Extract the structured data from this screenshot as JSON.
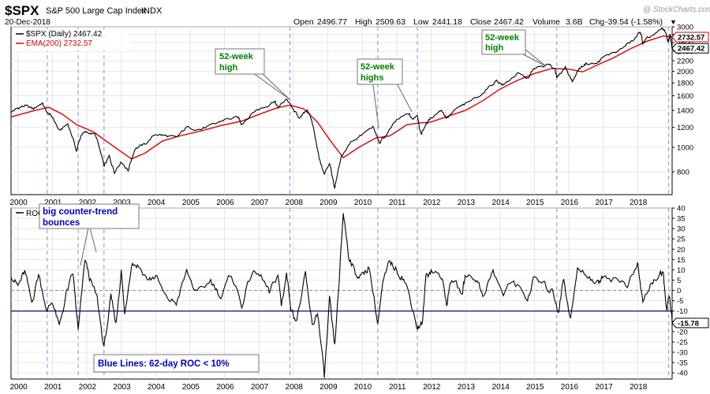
{
  "header": {
    "symbol": "$SPX",
    "name": "S&P 500 Large Cap Index",
    "exchange": "INDX",
    "date": "20-Dec-2018",
    "watermark": "@ StockCharts.com",
    "open_label": "Open",
    "open": "2496.77",
    "high_label": "High",
    "high": "2509.63",
    "low_label": "Low",
    "low": "2441.18",
    "close_label": "Close",
    "close": "2467.42",
    "volume_label": "Volume",
    "volume": "3.6B",
    "chg_label": "Chg",
    "chg": "-39.54 (-1.58%)",
    "chg_arrow": "▼",
    "chg_color": "#1a1ab0"
  },
  "legend": {
    "price_label": "$SPX (Daily) 2467.42",
    "ema_label": "EMA(200) 2732.57",
    "roc_label": "ROC"
  },
  "callouts": {
    "high_2007": [
      "52-week",
      "high"
    ],
    "highs_2011": [
      "52-week",
      "highs"
    ],
    "high_2015": [
      "52-week",
      "high"
    ],
    "bounces": [
      "big counter-trend",
      "bounces"
    ],
    "blue_lines": "Blue Lines: 62-day ROC < 10%"
  },
  "colors": {
    "price": "#000000",
    "ema": "#dd0000",
    "roc": "#000000",
    "threshold": "#0a0a6a",
    "signal": "#8b8bdd",
    "green_text": "#008000",
    "blue_text": "#0000cc",
    "grid": "#e0e0e0"
  },
  "chart_data": [
    {
      "type": "line",
      "title": "$SPX (Daily)",
      "scale": "log",
      "ylim": [
        650,
        3000
      ],
      "y_ticks": [
        800,
        1000,
        1200,
        1400,
        1600,
        1800,
        2000,
        2200,
        2400,
        2600,
        2800,
        3000
      ],
      "x_ticks": [
        "2000",
        "2001",
        "2002",
        "2003",
        "2004",
        "2005",
        "2006",
        "2007",
        "2008",
        "2009",
        "2010",
        "2011",
        "2012",
        "2013",
        "2014",
        "2015",
        "2016",
        "2017",
        "2018"
      ],
      "x_range": [
        1999.8,
        2019.0
      ],
      "signal_dates": [
        2000.85,
        2001.75,
        2002.5,
        2007.9,
        2010.45,
        2011.6,
        2015.65,
        2018.9
      ],
      "series": [
        {
          "name": "$SPX (Daily)",
          "last": 2467.42,
          "points": [
            [
              1999.8,
              1380
            ],
            [
              2000.0,
              1430
            ],
            [
              2000.2,
              1460
            ],
            [
              2000.45,
              1420
            ],
            [
              2000.7,
              1500
            ],
            [
              2000.85,
              1370
            ],
            [
              2001.0,
              1320
            ],
            [
              2001.2,
              1160
            ],
            [
              2001.45,
              1240
            ],
            [
              2001.7,
              970
            ],
            [
              2001.85,
              1130
            ],
            [
              2002.0,
              1150
            ],
            [
              2002.25,
              1120
            ],
            [
              2002.5,
              840
            ],
            [
              2002.65,
              920
            ],
            [
              2002.8,
              800
            ],
            [
              2003.0,
              880
            ],
            [
              2003.2,
              810
            ],
            [
              2003.4,
              990
            ],
            [
              2003.7,
              1030
            ],
            [
              2004.0,
              1130
            ],
            [
              2004.3,
              1110
            ],
            [
              2004.6,
              1090
            ],
            [
              2004.9,
              1200
            ],
            [
              2005.3,
              1180
            ],
            [
              2005.7,
              1230
            ],
            [
              2006.0,
              1290
            ],
            [
              2006.4,
              1310
            ],
            [
              2006.5,
              1240
            ],
            [
              2006.9,
              1400
            ],
            [
              2007.2,
              1450
            ],
            [
              2007.45,
              1530
            ],
            [
              2007.55,
              1430
            ],
            [
              2007.8,
              1560
            ],
            [
              2008.0,
              1400
            ],
            [
              2008.2,
              1300
            ],
            [
              2008.4,
              1420
            ],
            [
              2008.55,
              1250
            ],
            [
              2008.75,
              900
            ],
            [
              2008.9,
              780
            ],
            [
              2009.05,
              870
            ],
            [
              2009.2,
              680
            ],
            [
              2009.4,
              920
            ],
            [
              2009.7,
              1060
            ],
            [
              2010.0,
              1120
            ],
            [
              2010.3,
              1210
            ],
            [
              2010.5,
              1040
            ],
            [
              2010.7,
              1120
            ],
            [
              2011.0,
              1280
            ],
            [
              2011.35,
              1360
            ],
            [
              2011.45,
              1290
            ],
            [
              2011.6,
              1350
            ],
            [
              2011.7,
              1120
            ],
            [
              2011.8,
              1200
            ],
            [
              2012.0,
              1310
            ],
            [
              2012.3,
              1410
            ],
            [
              2012.45,
              1300
            ],
            [
              2012.8,
              1440
            ],
            [
              2013.0,
              1480
            ],
            [
              2013.5,
              1640
            ],
            [
              2013.9,
              1840
            ],
            [
              2014.1,
              1760
            ],
            [
              2014.5,
              1960
            ],
            [
              2014.8,
              1870
            ],
            [
              2015.0,
              2050
            ],
            [
              2015.4,
              2120
            ],
            [
              2015.6,
              2050
            ],
            [
              2015.65,
              1880
            ],
            [
              2015.9,
              2080
            ],
            [
              2016.1,
              1820
            ],
            [
              2016.3,
              2050
            ],
            [
              2016.5,
              2150
            ],
            [
              2016.8,
              2140
            ],
            [
              2017.0,
              2270
            ],
            [
              2017.5,
              2440
            ],
            [
              2017.9,
              2670
            ],
            [
              2018.08,
              2870
            ],
            [
              2018.15,
              2580
            ],
            [
              2018.3,
              2700
            ],
            [
              2018.7,
              2930
            ],
            [
              2018.8,
              2880
            ],
            [
              2018.88,
              2620
            ],
            [
              2018.94,
              2780
            ],
            [
              2019.0,
              2467
            ]
          ]
        },
        {
          "name": "EMA(200)",
          "last": 2732.57,
          "points": [
            [
              1999.8,
              1320
            ],
            [
              2000.5,
              1400
            ],
            [
              2000.9,
              1440
            ],
            [
              2001.3,
              1350
            ],
            [
              2001.7,
              1230
            ],
            [
              2002.2,
              1150
            ],
            [
              2002.6,
              1050
            ],
            [
              2003.0,
              960
            ],
            [
              2003.3,
              900
            ],
            [
              2003.7,
              950
            ],
            [
              2004.2,
              1060
            ],
            [
              2004.7,
              1110
            ],
            [
              2005.3,
              1160
            ],
            [
              2005.9,
              1220
            ],
            [
              2006.5,
              1270
            ],
            [
              2007.0,
              1350
            ],
            [
              2007.5,
              1430
            ],
            [
              2007.9,
              1470
            ],
            [
              2008.3,
              1420
            ],
            [
              2008.7,
              1260
            ],
            [
              2009.1,
              1050
            ],
            [
              2009.45,
              910
            ],
            [
              2009.9,
              1000
            ],
            [
              2010.4,
              1090
            ],
            [
              2010.8,
              1110
            ],
            [
              2011.3,
              1230
            ],
            [
              2011.7,
              1250
            ],
            [
              2012.0,
              1260
            ],
            [
              2012.5,
              1330
            ],
            [
              2013.0,
              1400
            ],
            [
              2013.5,
              1530
            ],
            [
              2014.0,
              1700
            ],
            [
              2014.5,
              1840
            ],
            [
              2015.0,
              1960
            ],
            [
              2015.5,
              2050
            ],
            [
              2016.0,
              2040
            ],
            [
              2016.4,
              1990
            ],
            [
              2016.8,
              2110
            ],
            [
              2017.3,
              2260
            ],
            [
              2017.8,
              2460
            ],
            [
              2018.3,
              2640
            ],
            [
              2018.75,
              2760
            ],
            [
              2019.0,
              2732
            ]
          ]
        }
      ]
    },
    {
      "type": "line",
      "title": "ROC",
      "ylim": [
        -43,
        40
      ],
      "y_ticks": [
        -40,
        -35,
        -30,
        -25,
        -20,
        -15,
        -10,
        -5,
        0,
        5,
        10,
        15,
        20,
        25,
        30,
        35,
        40
      ],
      "x_ticks": [
        "2000",
        "2001",
        "2002",
        "2003",
        "2004",
        "2005",
        "2006",
        "2007",
        "2008",
        "2009",
        "2010",
        "2011",
        "2012",
        "2013",
        "2014",
        "2015",
        "2016",
        "2017",
        "2018"
      ],
      "x_range": [
        1999.8,
        2019.0
      ],
      "threshold": -10,
      "zero_line": 0,
      "series": [
        {
          "name": "ROC",
          "last": -15.78,
          "points": [
            [
              1999.8,
              8
            ],
            [
              2000.0,
              2
            ],
            [
              2000.2,
              9
            ],
            [
              2000.4,
              -6
            ],
            [
              2000.6,
              8
            ],
            [
              2000.85,
              -10
            ],
            [
              2001.0,
              -5
            ],
            [
              2001.2,
              -18
            ],
            [
              2001.4,
              -2
            ],
            [
              2001.6,
              8
            ],
            [
              2001.75,
              -20
            ],
            [
              2001.95,
              15
            ],
            [
              2002.1,
              5
            ],
            [
              2002.3,
              -4
            ],
            [
              2002.5,
              -28
            ],
            [
              2002.7,
              -4
            ],
            [
              2002.85,
              -16
            ],
            [
              2003.0,
              10
            ],
            [
              2003.1,
              -12
            ],
            [
              2003.3,
              14
            ],
            [
              2003.5,
              12
            ],
            [
              2003.8,
              5
            ],
            [
              2004.0,
              7
            ],
            [
              2004.3,
              -4
            ],
            [
              2004.6,
              -6
            ],
            [
              2004.9,
              9
            ],
            [
              2005.2,
              -2
            ],
            [
              2005.6,
              5
            ],
            [
              2005.9,
              -3
            ],
            [
              2006.2,
              8
            ],
            [
              2006.5,
              -7
            ],
            [
              2006.8,
              9
            ],
            [
              2007.1,
              6
            ],
            [
              2007.3,
              -2
            ],
            [
              2007.55,
              8
            ],
            [
              2007.65,
              -7
            ],
            [
              2007.8,
              8
            ],
            [
              2007.95,
              -10
            ],
            [
              2008.1,
              -14
            ],
            [
              2008.35,
              7
            ],
            [
              2008.55,
              -18
            ],
            [
              2008.7,
              -10
            ],
            [
              2008.9,
              -42
            ],
            [
              2009.05,
              -5
            ],
            [
              2009.2,
              -28
            ],
            [
              2009.35,
              10
            ],
            [
              2009.45,
              38
            ],
            [
              2009.6,
              18
            ],
            [
              2009.8,
              8
            ],
            [
              2010.0,
              7
            ],
            [
              2010.2,
              12
            ],
            [
              2010.45,
              -16
            ],
            [
              2010.6,
              3
            ],
            [
              2010.8,
              14
            ],
            [
              2011.0,
              10
            ],
            [
              2011.2,
              6
            ],
            [
              2011.4,
              -4
            ],
            [
              2011.6,
              -18
            ],
            [
              2011.75,
              -16
            ],
            [
              2011.85,
              7
            ],
            [
              2012.0,
              10
            ],
            [
              2012.3,
              7
            ],
            [
              2012.45,
              -6
            ],
            [
              2012.6,
              6
            ],
            [
              2012.9,
              -2
            ],
            [
              2013.0,
              8
            ],
            [
              2013.3,
              6
            ],
            [
              2013.5,
              -2
            ],
            [
              2013.8,
              9
            ],
            [
              2014.1,
              -2
            ],
            [
              2014.4,
              5
            ],
            [
              2014.8,
              -4
            ],
            [
              2015.0,
              6
            ],
            [
              2015.3,
              2
            ],
            [
              2015.55,
              -1
            ],
            [
              2015.7,
              -10
            ],
            [
              2015.85,
              6
            ],
            [
              2016.05,
              -14
            ],
            [
              2016.25,
              10
            ],
            [
              2016.6,
              7
            ],
            [
              2016.85,
              3
            ],
            [
              2017.0,
              8
            ],
            [
              2017.4,
              5
            ],
            [
              2017.7,
              3
            ],
            [
              2018.0,
              12
            ],
            [
              2018.15,
              -6
            ],
            [
              2018.4,
              4
            ],
            [
              2018.65,
              8
            ],
            [
              2018.75,
              6
            ],
            [
              2018.85,
              -10
            ],
            [
              2018.92,
              -2
            ],
            [
              2019.0,
              -15.78
            ]
          ]
        }
      ]
    }
  ]
}
